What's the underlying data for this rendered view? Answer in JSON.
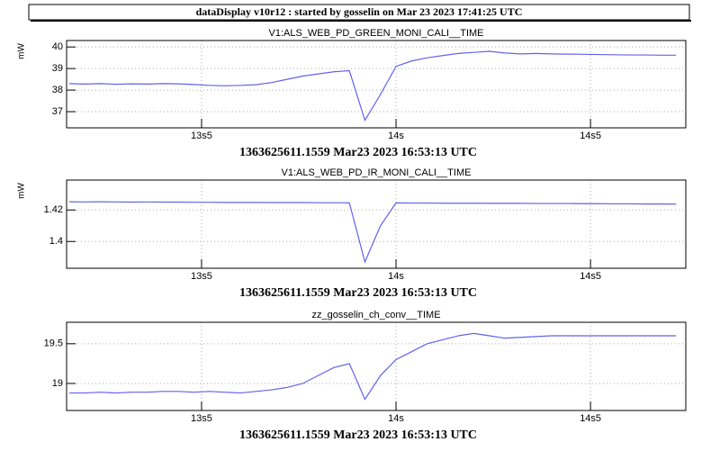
{
  "header": {
    "title": "dataDisplay v10r12 : started by gosselin on Mar 23 2023 17:41:25 UTC"
  },
  "chart_data": [
    {
      "type": "line",
      "title": "V1:ALS_WEB_PD_GREEN_MONI_CALI__TIME",
      "ylabel": "mW",
      "xlabel": "1363625611.1559 Mar23 2023 16:53:13 UTC",
      "color": "#6262ee",
      "grid": true,
      "x": [
        13.16,
        13.2,
        13.24,
        13.28,
        13.32,
        13.36,
        13.4,
        13.44,
        13.48,
        13.52,
        13.56,
        13.6,
        13.64,
        13.68,
        13.72,
        13.76,
        13.8,
        13.84,
        13.88,
        13.92,
        13.96,
        14.0,
        14.04,
        14.08,
        14.12,
        14.16,
        14.2,
        14.24,
        14.28,
        14.32,
        14.36,
        14.4,
        14.44,
        14.48,
        14.52,
        14.56,
        14.6,
        14.64,
        14.68,
        14.72
      ],
      "values": [
        38.3,
        38.28,
        38.3,
        38.27,
        38.29,
        38.28,
        38.3,
        38.29,
        38.26,
        38.22,
        38.2,
        38.22,
        38.25,
        38.35,
        38.5,
        38.65,
        38.75,
        38.85,
        38.9,
        36.6,
        37.8,
        39.1,
        39.35,
        39.5,
        39.6,
        39.7,
        39.75,
        39.8,
        39.72,
        39.68,
        39.7,
        39.68,
        39.67,
        39.66,
        39.65,
        39.64,
        39.63,
        39.63,
        39.62,
        39.62
      ],
      "xlim": [
        13.153,
        14.745
      ],
      "xticks": [
        {
          "value": 13.5,
          "label": "13s5"
        },
        {
          "value": 14,
          "label": "14s"
        },
        {
          "value": 14.5,
          "label": "14s5"
        }
      ],
      "ylim": [
        36.25,
        40.3
      ],
      "yticks": [
        37,
        38,
        39,
        40
      ]
    },
    {
      "type": "line",
      "title": "V1:ALS_WEB_PD_IR_MONI_CALI__TIME",
      "ylabel": "mW",
      "xlabel": "1363625611.1559 Mar23 2023 16:53:13 UTC",
      "color": "#6262ee",
      "grid": true,
      "x": [
        13.16,
        13.2,
        13.24,
        13.28,
        13.32,
        13.36,
        13.4,
        13.44,
        13.48,
        13.52,
        13.56,
        13.6,
        13.64,
        13.68,
        13.72,
        13.76,
        13.8,
        13.84,
        13.88,
        13.92,
        13.96,
        14.0,
        14.04,
        14.08,
        14.12,
        14.16,
        14.2,
        14.24,
        14.28,
        14.32,
        14.36,
        14.4,
        14.44,
        14.48,
        14.52,
        14.56,
        14.6,
        14.64,
        14.68,
        14.72
      ],
      "values": [
        1.4252,
        1.4251,
        1.4252,
        1.4251,
        1.425,
        1.4251,
        1.425,
        1.425,
        1.4249,
        1.4249,
        1.4248,
        1.4248,
        1.4248,
        1.4247,
        1.4247,
        1.4247,
        1.4246,
        1.4246,
        1.4245,
        1.387,
        1.41,
        1.4245,
        1.4244,
        1.4244,
        1.4243,
        1.4243,
        1.4243,
        1.4242,
        1.4242,
        1.4242,
        1.4241,
        1.4241,
        1.4241,
        1.424,
        1.424,
        1.4239,
        1.4239,
        1.4238,
        1.4238,
        1.4237
      ],
      "xlim": [
        13.153,
        14.745
      ],
      "xticks": [
        {
          "value": 13.5,
          "label": "13s5"
        },
        {
          "value": 14,
          "label": "14s"
        },
        {
          "value": 14.5,
          "label": "14s5"
        }
      ],
      "ylim": [
        1.383,
        1.439
      ],
      "yticks": [
        1.4,
        1.42
      ]
    },
    {
      "type": "line",
      "title": "zz_gosselin_ch_conv__TIME",
      "xlabel": "1363625611.1559 Mar23 2023 16:53:13 UTC",
      "color": "#6262ee",
      "grid": true,
      "x": [
        13.16,
        13.2,
        13.24,
        13.28,
        13.32,
        13.36,
        13.4,
        13.44,
        13.48,
        13.52,
        13.56,
        13.6,
        13.64,
        13.68,
        13.72,
        13.76,
        13.8,
        13.84,
        13.88,
        13.92,
        13.96,
        14.0,
        14.04,
        14.08,
        14.12,
        14.16,
        14.2,
        14.24,
        14.28,
        14.32,
        14.36,
        14.4,
        14.44,
        14.48,
        14.52,
        14.56,
        14.6,
        14.64,
        14.68,
        14.72
      ],
      "values": [
        18.88,
        18.88,
        18.89,
        18.88,
        18.89,
        18.89,
        18.9,
        18.9,
        18.89,
        18.9,
        18.89,
        18.88,
        18.9,
        18.92,
        18.95,
        19.0,
        19.1,
        19.2,
        19.25,
        18.8,
        19.1,
        19.3,
        19.4,
        19.5,
        19.55,
        19.6,
        19.63,
        19.6,
        19.57,
        19.58,
        19.59,
        19.6,
        19.6,
        19.6,
        19.6,
        19.6,
        19.6,
        19.6,
        19.6,
        19.6
      ],
      "xlim": [
        13.153,
        14.745
      ],
      "xticks": [
        {
          "value": 13.5,
          "label": "13s5"
        },
        {
          "value": 14,
          "label": "14s"
        },
        {
          "value": 14.5,
          "label": "14s5"
        }
      ],
      "ylim": [
        18.66,
        19.77
      ],
      "yticks": [
        19,
        19.5
      ]
    }
  ]
}
